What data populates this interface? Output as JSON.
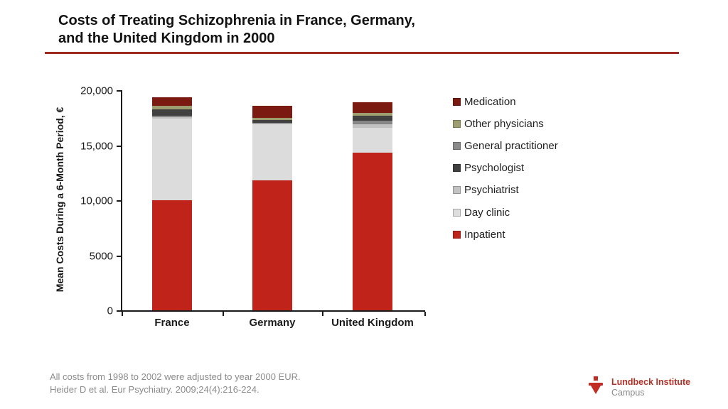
{
  "title": {
    "line1": "Costs of Treating Schizophrenia in France, Germany,",
    "line2": "and the United Kingdom in 2000"
  },
  "accent_color": "#9b2b22",
  "chart_data": {
    "type": "bar",
    "stacked": true,
    "title": "",
    "xlabel": "",
    "ylabel": "Mean Costs During a 6-Month Period, €",
    "ylim": [
      0,
      20000
    ],
    "grid": false,
    "legend_position": "right",
    "categories": [
      "France",
      "Germany",
      "United Kingdom"
    ],
    "yticks": [
      {
        "value": 0,
        "label": "0"
      },
      {
        "value": 5000,
        "label": "5000"
      },
      {
        "value": 10000,
        "label": "10,000"
      },
      {
        "value": 15000,
        "label": "15,000"
      },
      {
        "value": 20000,
        "label": "20,000"
      }
    ],
    "stack_order": "bottom-to-top",
    "series": [
      {
        "name": "Inpatient",
        "color": "#c0231a",
        "values": [
          10000,
          11800,
          14300
        ]
      },
      {
        "name": "Day clinic",
        "color": "#dcdcdc",
        "values": [
          7450,
          5100,
          2300
        ]
      },
      {
        "name": "Psychiatrist",
        "color": "#c2c2c2",
        "values": [
          100,
          80,
          330
        ]
      },
      {
        "name": "General practitioner",
        "color": "#868686",
        "values": [
          150,
          80,
          300
        ]
      },
      {
        "name": "Psychologist",
        "color": "#414141",
        "values": [
          550,
          250,
          430
        ]
      },
      {
        "name": "Other physicians",
        "color": "#9d9d6f",
        "values": [
          320,
          200,
          280
        ]
      },
      {
        "name": "Medication",
        "color": "#7a1a10",
        "values": [
          800,
          1050,
          950
        ]
      }
    ],
    "legend": [
      {
        "label": "Medication",
        "color": "#7a1a10"
      },
      {
        "label": "Other physicians",
        "color": "#9d9d6f"
      },
      {
        "label": "General practitioner",
        "color": "#8a8a8a"
      },
      {
        "label": "Psychologist",
        "color": "#3f3f3f"
      },
      {
        "label": "Psychiatrist",
        "color": "#c2c2c2"
      },
      {
        "label": "Day clinic",
        "color": "#dedede"
      },
      {
        "label": "Inpatient",
        "color": "#c0231a"
      }
    ]
  },
  "footer": {
    "line1": "All costs from 1998 to 2002 were adjusted to year 2000 EUR.",
    "line2": "Heider D et al. Eur Psychiatry. 2009;24(4):216-224."
  },
  "logo": {
    "name": "Lundbeck Institute",
    "sub": "Campus"
  }
}
